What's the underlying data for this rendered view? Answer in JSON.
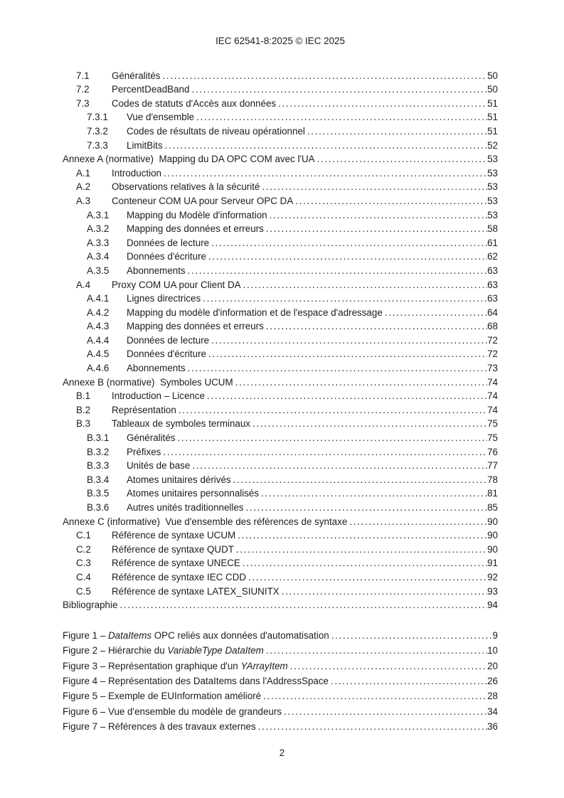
{
  "header": {
    "title": "IEC 62541-8:2025 © IEC 2025"
  },
  "colors": {
    "text": "#1c1c1c",
    "background": "#ffffff"
  },
  "toc": {
    "entries": [
      {
        "level": 1,
        "num": "7.1",
        "label": "Généralités",
        "page": "50"
      },
      {
        "level": 1,
        "num": "7.2",
        "label": "PercentDeadBand",
        "page": "50"
      },
      {
        "level": 1,
        "num": "7.3",
        "label": "Codes de statuts d'Accès aux données",
        "page": "51"
      },
      {
        "level": 2,
        "num": "7.3.1",
        "label": "Vue d'ensemble",
        "page": "51"
      },
      {
        "level": 2,
        "num": "7.3.2",
        "label": "Codes de résultats de niveau opérationnel",
        "page": "51"
      },
      {
        "level": 2,
        "num": "7.3.3",
        "label": "LimitBits",
        "page": "52"
      },
      {
        "level": 0,
        "num": "",
        "label": "Annexe A (normative)  Mapping du DA OPC COM avec l'UA",
        "page": "53"
      },
      {
        "level": 1,
        "num": "A.1",
        "label": "Introduction",
        "page": "53"
      },
      {
        "level": 1,
        "num": "A.2",
        "label": "Observations relatives à la sécurité",
        "page": "53"
      },
      {
        "level": 1,
        "num": "A.3",
        "label": "Conteneur COM UA pour Serveur OPC DA",
        "page": "53"
      },
      {
        "level": 2,
        "num": "A.3.1",
        "label": "Mapping du Modèle d'information",
        "page": "53"
      },
      {
        "level": 2,
        "num": "A.3.2",
        "label": "Mapping des données et erreurs",
        "page": "58"
      },
      {
        "level": 2,
        "num": "A.3.3",
        "label": "Données de lecture",
        "page": "61"
      },
      {
        "level": 2,
        "num": "A.3.4",
        "label": "Données d'écriture",
        "page": "62"
      },
      {
        "level": 2,
        "num": "A.3.5",
        "label": "Abonnements",
        "page": "63"
      },
      {
        "level": 1,
        "num": "A.4",
        "label": "Proxy COM UA pour Client DA",
        "page": "63"
      },
      {
        "level": 2,
        "num": "A.4.1",
        "label": "Lignes directrices",
        "page": "63"
      },
      {
        "level": 2,
        "num": "A.4.2",
        "label": "Mapping du modèle d'information et de l'espace d'adressage",
        "page": "64"
      },
      {
        "level": 2,
        "num": "A.4.3",
        "label": "Mapping des données et erreurs",
        "page": "68"
      },
      {
        "level": 2,
        "num": "A.4.4",
        "label": "Données de lecture",
        "page": "72"
      },
      {
        "level": 2,
        "num": "A.4.5",
        "label": "Données d'écriture",
        "page": "72"
      },
      {
        "level": 2,
        "num": "A.4.6",
        "label": "Abonnements",
        "page": "73"
      },
      {
        "level": 0,
        "num": "",
        "label": "Annexe B (normative)  Symboles UCUM",
        "page": "74"
      },
      {
        "level": 1,
        "num": "B.1",
        "label": "Introduction – Licence",
        "page": "74"
      },
      {
        "level": 1,
        "num": "B.2",
        "label": "Représentation",
        "page": "74"
      },
      {
        "level": 1,
        "num": "B.3",
        "label": "Tableaux de symboles terminaux",
        "page": "75"
      },
      {
        "level": 2,
        "num": "B.3.1",
        "label": "Généralités",
        "page": "75"
      },
      {
        "level": 2,
        "num": "B.3.2",
        "label": "Préfixes",
        "page": "76"
      },
      {
        "level": 2,
        "num": "B.3.3",
        "label": "Unités de base",
        "page": "77"
      },
      {
        "level": 2,
        "num": "B.3.4",
        "label": "Atomes unitaires dérivés",
        "page": "78"
      },
      {
        "level": 2,
        "num": "B.3.5",
        "label": "Atomes unitaires personnalisés",
        "page": "81"
      },
      {
        "level": 2,
        "num": "B.3.6",
        "label": "Autres unités traditionnelles",
        "page": "85"
      },
      {
        "level": 0,
        "num": "",
        "label": "Annexe C (informative)  Vue d'ensemble des références de syntaxe",
        "page": "90"
      },
      {
        "level": 1,
        "num": "C.1",
        "label": "Référence de syntaxe UCUM",
        "page": "90"
      },
      {
        "level": 1,
        "num": "C.2",
        "label": "Référence de syntaxe QUDT",
        "page": "90"
      },
      {
        "level": 1,
        "num": "C.3",
        "label": "Référence de syntaxe UNECE",
        "page": "91"
      },
      {
        "level": 1,
        "num": "C.4",
        "label": "Référence de syntaxe IEC CDD",
        "page": "92"
      },
      {
        "level": 1,
        "num": "C.5",
        "label": "Référence de syntaxe LATEX_SIUNITX",
        "page": "93"
      },
      {
        "level": 0,
        "num": "",
        "label": "Bibliographie",
        "page": "94"
      }
    ]
  },
  "figures": {
    "entries": [
      {
        "prefix": "Figure 1 – ",
        "italic": "DataItems",
        "suffix": " OPC reliés aux données d'automatisation",
        "page": "9"
      },
      {
        "prefix": "Figure 2 – Hiérarchie du ",
        "italic": "VariableType DataItem",
        "suffix": "",
        "page": "10"
      },
      {
        "prefix": "Figure 3 – Représentation graphique d'un ",
        "italic": "YArrayItem",
        "suffix": "",
        "page": "20"
      },
      {
        "prefix": "Figure 4 – Représentation des DataItems dans l'AddressSpace",
        "italic": "",
        "suffix": "",
        "page": "26"
      },
      {
        "prefix": "Figure 5 – Exemple de EUInformation amélioré",
        "italic": "",
        "suffix": "",
        "page": "28"
      },
      {
        "prefix": "Figure 6 – Vue d'ensemble du modèle de grandeurs",
        "italic": "",
        "suffix": "",
        "page": "34"
      },
      {
        "prefix": "Figure 7 – Références à des travaux externes",
        "italic": "",
        "suffix": "",
        "page": "36"
      }
    ]
  },
  "footer": {
    "page_number": "2"
  }
}
